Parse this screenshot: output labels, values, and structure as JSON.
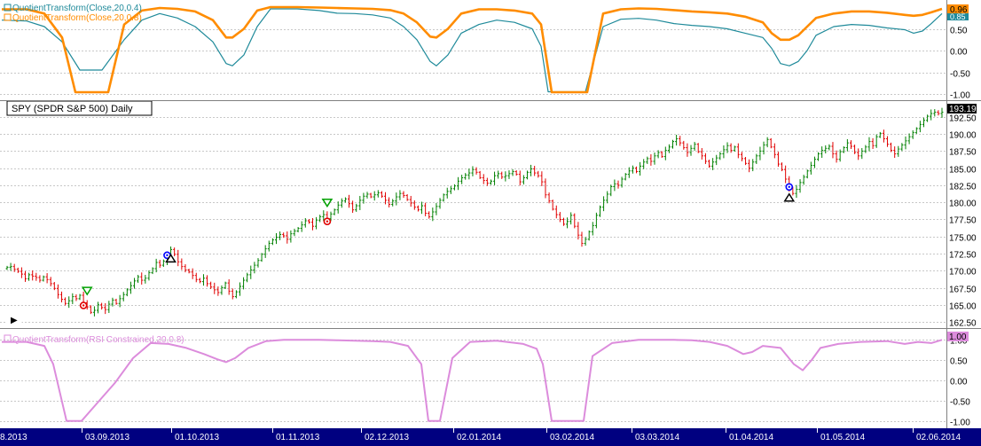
{
  "colors": {
    "grid": "#c8c8c8",
    "up_bar": "#008000",
    "down_bar": "#e00000",
    "qt_fast": "#1f8a9a",
    "qt_slow": "#ff8c00",
    "rsi_line": "#dc8cdc",
    "date_axis_bg": "#000080",
    "date_text": "#ffffff",
    "last_price_bg": "#000000",
    "buy_signal": "#00a000",
    "sell_signal": "#e00000",
    "blue_marker": "#0000ff",
    "black_marker": "#000000"
  },
  "chart_data": [
    {
      "type": "line",
      "name": "QuotientTransform upper panel",
      "legend": [
        "QuotientTransform(Close,20,0.4)",
        "QuotientTransform(Close,20,0.8)"
      ],
      "legend_placement": "top-left",
      "y_ticks": [
        "0.50",
        "0.00",
        "-0.50",
        "-1.00"
      ],
      "ylim": [
        -1.0,
        1.0
      ],
      "last_value_labels": [
        "0.96",
        "0.85"
      ],
      "grid": true,
      "series": [
        {
          "name": "QuotientTransform(Close,20,0.4)",
          "color_key": "qt_fast",
          "x": [
            2,
            30,
            50,
            70,
            90,
            115,
            140,
            160,
            180,
            200,
            220,
            240,
            255,
            262,
            275,
            290,
            305,
            335,
            360,
            380,
            400,
            420,
            440,
            455,
            470,
            485,
            492,
            505,
            520,
            540,
            560,
            580,
            600,
            610,
            618,
            625,
            640,
            660,
            680,
            700,
            720,
            740,
            760,
            780,
            800,
            820,
            840,
            860,
            870,
            880,
            890,
            900,
            910,
            920,
            940,
            960,
            980,
            1000,
            1020,
            1030,
            1040,
            1050,
            1062
          ],
          "values": [
            0.7,
            0.68,
            0.55,
            0.2,
            -0.45,
            -0.45,
            0.25,
            0.7,
            0.85,
            0.75,
            0.55,
            0.2,
            -0.3,
            -0.35,
            -0.1,
            0.55,
            0.96,
            0.96,
            0.92,
            0.86,
            0.85,
            0.82,
            0.75,
            0.55,
            0.25,
            -0.25,
            -0.35,
            -0.1,
            0.4,
            0.6,
            0.7,
            0.65,
            0.5,
            0.1,
            -0.95,
            -0.95,
            -0.95,
            -0.95,
            0.55,
            0.72,
            0.74,
            0.7,
            0.62,
            0.58,
            0.55,
            0.5,
            0.4,
            0.3,
            0.05,
            -0.3,
            -0.35,
            -0.25,
            0.0,
            0.35,
            0.55,
            0.6,
            0.58,
            0.52,
            0.48,
            0.4,
            0.45,
            0.62,
            0.85
          ]
        },
        {
          "name": "QuotientTransform(Close,20,0.8)",
          "color_key": "qt_slow",
          "x": [
            2,
            30,
            50,
            70,
            85,
            122,
            140,
            160,
            180,
            200,
            220,
            240,
            255,
            262,
            275,
            290,
            305,
            335,
            360,
            380,
            400,
            420,
            440,
            455,
            470,
            485,
            492,
            505,
            520,
            540,
            560,
            580,
            600,
            610,
            622,
            662,
            680,
            700,
            720,
            740,
            760,
            780,
            800,
            820,
            840,
            860,
            870,
            880,
            890,
            900,
            910,
            920,
            940,
            960,
            980,
            1000,
            1020,
            1030,
            1040,
            1050,
            1062
          ],
          "values": [
            0.95,
            0.95,
            0.85,
            0.3,
            -0.96,
            -0.96,
            0.6,
            0.92,
            0.98,
            0.96,
            0.9,
            0.7,
            0.3,
            0.3,
            0.5,
            0.92,
            1.0,
            1.0,
            0.99,
            0.98,
            0.97,
            0.96,
            0.93,
            0.85,
            0.65,
            0.32,
            0.3,
            0.5,
            0.85,
            0.95,
            0.95,
            0.92,
            0.85,
            0.6,
            -0.96,
            -0.96,
            0.85,
            0.95,
            0.97,
            0.96,
            0.93,
            0.9,
            0.88,
            0.85,
            0.78,
            0.65,
            0.4,
            0.25,
            0.25,
            0.35,
            0.55,
            0.75,
            0.85,
            0.9,
            0.9,
            0.87,
            0.82,
            0.8,
            0.82,
            0.88,
            0.96
          ]
        }
      ]
    },
    {
      "type": "bar",
      "name": "price panel",
      "title": "SPY (SPDR S&P 500) Daily",
      "last_value_label": "193.19",
      "y_ticks": [
        "192.50",
        "190.00",
        "187.50",
        "185.00",
        "182.50",
        "180.00",
        "177.50",
        "175.00",
        "172.50",
        "170.00",
        "167.50",
        "165.00",
        "162.50"
      ],
      "ylim": [
        161.6,
        194.3
      ],
      "grid": true,
      "closes": [
        170.5,
        170.6,
        170.2,
        169.9,
        169.5,
        168.8,
        169.4,
        169.2,
        169.0,
        168.6,
        169.1,
        168.7,
        168.1,
        167.4,
        166.5,
        165.8,
        165.2,
        165.6,
        166.2,
        165.9,
        166.4,
        165.3,
        164.7,
        163.9,
        164.2,
        165.0,
        164.6,
        164.3,
        165.1,
        165.7,
        165.2,
        165.9,
        166.5,
        167.2,
        167.8,
        168.5,
        169.1,
        168.6,
        168.9,
        169.7,
        170.3,
        171.2,
        170.8,
        171.4,
        172.0,
        173.1,
        172.4,
        171.3,
        170.6,
        170.1,
        169.8,
        169.3,
        168.7,
        168.4,
        168.9,
        168.1,
        167.6,
        167.2,
        166.8,
        167.5,
        168.2,
        167.0,
        166.2,
        166.9,
        167.7,
        168.6,
        169.4,
        170.1,
        170.8,
        171.5,
        172.4,
        173.2,
        174.0,
        174.5,
        174.9,
        175.3,
        175.1,
        174.6,
        175.4,
        175.8,
        176.2,
        176.7,
        177.3,
        177.1,
        176.5,
        177.4,
        177.9,
        178.2,
        177.6,
        178.3,
        178.9,
        179.6,
        180.2,
        180.5,
        179.8,
        178.9,
        179.5,
        180.3,
        180.9,
        181.2,
        180.8,
        181.1,
        181.4,
        180.9,
        180.3,
        179.7,
        180.2,
        180.8,
        181.3,
        181.0,
        180.4,
        179.9,
        179.3,
        178.9,
        179.5,
        178.4,
        177.9,
        178.6,
        179.4,
        180.3,
        181.1,
        181.6,
        182.0,
        182.4,
        183.1,
        183.6,
        184.0,
        184.3,
        184.8,
        184.4,
        183.6,
        183.2,
        182.8,
        183.1,
        183.9,
        184.2,
        183.7,
        183.9,
        184.2,
        184.5,
        184.1,
        183.0,
        183.6,
        184.4,
        184.9,
        184.3,
        183.9,
        183.0,
        181.1,
        180.2,
        179.0,
        178.2,
        177.5,
        176.8,
        177.2,
        178.1,
        176.5,
        175.2,
        174.0,
        174.6,
        175.7,
        176.6,
        178.1,
        179.3,
        180.3,
        181.2,
        182.3,
        182.7,
        182.5,
        183.4,
        184.1,
        184.6,
        185.0,
        184.5,
        185.3,
        185.9,
        186.4,
        186.0,
        186.8,
        187.3,
        186.7,
        187.6,
        188.1,
        188.9,
        189.3,
        188.7,
        188.0,
        187.3,
        187.9,
        188.5,
        187.4,
        186.8,
        186.0,
        185.3,
        185.9,
        186.5,
        187.1,
        187.7,
        188.3,
        187.6,
        188.1,
        187.0,
        186.4,
        185.7,
        185.0,
        185.9,
        186.8,
        187.5,
        188.4,
        189.2,
        188.1,
        187.0,
        185.6,
        184.8,
        183.4,
        182.0,
        181.3,
        181.9,
        182.9,
        183.7,
        184.6,
        185.4,
        186.3,
        187.1,
        187.6,
        187.9,
        188.2,
        187.1,
        186.3,
        187.4,
        188.0,
        188.7,
        188.2,
        187.3,
        186.8,
        187.5,
        188.1,
        188.9,
        188.3,
        189.6,
        190.1,
        189.3,
        188.5,
        187.6,
        187.1,
        187.8,
        188.4,
        189.0,
        189.6,
        190.2,
        190.8,
        191.4,
        192.0,
        192.6,
        193.0,
        193.2,
        193.0,
        193.19
      ],
      "signals": [
        {
          "kind": "buy",
          "bar": 22
        },
        {
          "kind": "sell",
          "bar": 21
        },
        {
          "kind": "buy_alt",
          "bar": 44
        },
        {
          "kind": "sell_alt",
          "bar": 45
        },
        {
          "kind": "buy",
          "bar": 88
        },
        {
          "kind": "sell",
          "bar": 88
        },
        {
          "kind": "buy_alt",
          "bar": 215
        },
        {
          "kind": "sell_alt",
          "bar": 215
        },
        {
          "kind": "buy",
          "bar": 281
        },
        {
          "kind": "sell",
          "bar": 280
        }
      ]
    },
    {
      "type": "line",
      "name": "RSI QuotientTransform panel",
      "legend": [
        "QuotientTransform(RSI Constrained,20,0.8)"
      ],
      "legend_placement": "top-left",
      "y_ticks": [
        "1.00",
        "0.50",
        "0.00",
        "-0.50",
        "-1.00"
      ],
      "last_value_label": "1.00",
      "ylim": [
        -1.05,
        1.05
      ],
      "grid": true,
      "series": [
        {
          "name": "QuotientTransform(RSI Constrained,20,0.8)",
          "color_key": "rsi_line",
          "x": [
            2,
            30,
            50,
            60,
            75,
            92,
            110,
            130,
            150,
            170,
            190,
            210,
            230,
            245,
            255,
            265,
            280,
            300,
            320,
            360,
            380,
            400,
            420,
            440,
            460,
            475,
            483,
            496,
            510,
            530,
            560,
            590,
            605,
            612,
            622,
            658,
            668,
            690,
            720,
            760,
            780,
            800,
            820,
            838,
            848,
            860,
            880,
            895,
            905,
            915,
            925,
            945,
            970,
            1000,
            1020,
            1035,
            1050,
            1062
          ],
          "values": [
            0.95,
            0.95,
            0.85,
            0.4,
            -1.0,
            -1.0,
            -0.55,
            -0.05,
            0.55,
            0.92,
            0.9,
            0.8,
            0.65,
            0.52,
            0.45,
            0.55,
            0.8,
            0.97,
            1.0,
            1.0,
            0.99,
            0.98,
            0.97,
            0.95,
            0.85,
            0.4,
            -1.0,
            -1.0,
            0.55,
            0.95,
            0.98,
            0.9,
            0.78,
            0.4,
            -1.0,
            -1.0,
            0.6,
            0.92,
            1.0,
            1.0,
            0.99,
            0.95,
            0.85,
            0.65,
            0.7,
            0.85,
            0.8,
            0.4,
            0.25,
            0.5,
            0.8,
            0.9,
            0.95,
            0.97,
            0.9,
            0.95,
            0.92,
            1.0
          ]
        }
      ]
    }
  ],
  "date_axis": {
    "labels": [
      "8.2013",
      "03.09.2013",
      "01.10.2013",
      "01.11.2013",
      "02.12.2013",
      "02.01.2014",
      "03.02.2014",
      "03.03.2014",
      "01.04.2014",
      "01.05.2014",
      "02.06.2014"
    ]
  },
  "play_button": {
    "symbol": "▶"
  }
}
